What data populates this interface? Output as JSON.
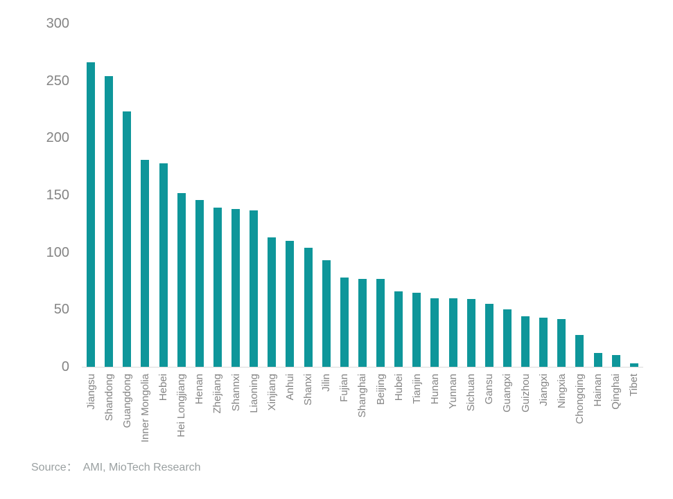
{
  "chart_data": {
    "type": "bar",
    "categories": [
      "Jiangsu",
      "Shandong",
      "Guangdong",
      "Inner Mongolia",
      "Hebei",
      "Hei Longjiang",
      "Henan",
      "Zhejiang",
      "Shannxi",
      "Liaoning",
      "Xinjiang",
      "Anhui",
      "Shanxi",
      "Jilin",
      "Fujian",
      "Shanghai",
      "Beijing",
      "Hubei",
      "Tianjin",
      "Hunan",
      "Yunnan",
      "Sichuan",
      "Gansu",
      "Guangxi",
      "Guizhou",
      "Jiangxi",
      "Ningxia",
      "Chongqing",
      "Hainan",
      "Qinghai",
      "Tibet"
    ],
    "values": [
      266,
      254,
      223,
      181,
      178,
      152,
      146,
      139,
      138,
      137,
      113,
      110,
      104,
      93,
      78,
      77,
      77,
      66,
      65,
      60,
      60,
      59,
      55,
      50,
      44,
      43,
      42,
      28,
      12,
      10,
      3
    ],
    "title": "",
    "xlabel": "",
    "ylabel": "",
    "ylim": [
      0,
      300
    ],
    "yticks": [
      300,
      250,
      200,
      150,
      100,
      50,
      0
    ],
    "grid": false,
    "legend_position": "none",
    "bar_color": "#0e969a",
    "axis_label_color": "#848484",
    "axis_line_color": "#d9d9d9"
  },
  "footer": {
    "source_label": "Source：",
    "source_text": "AMI, MioTech Research"
  }
}
